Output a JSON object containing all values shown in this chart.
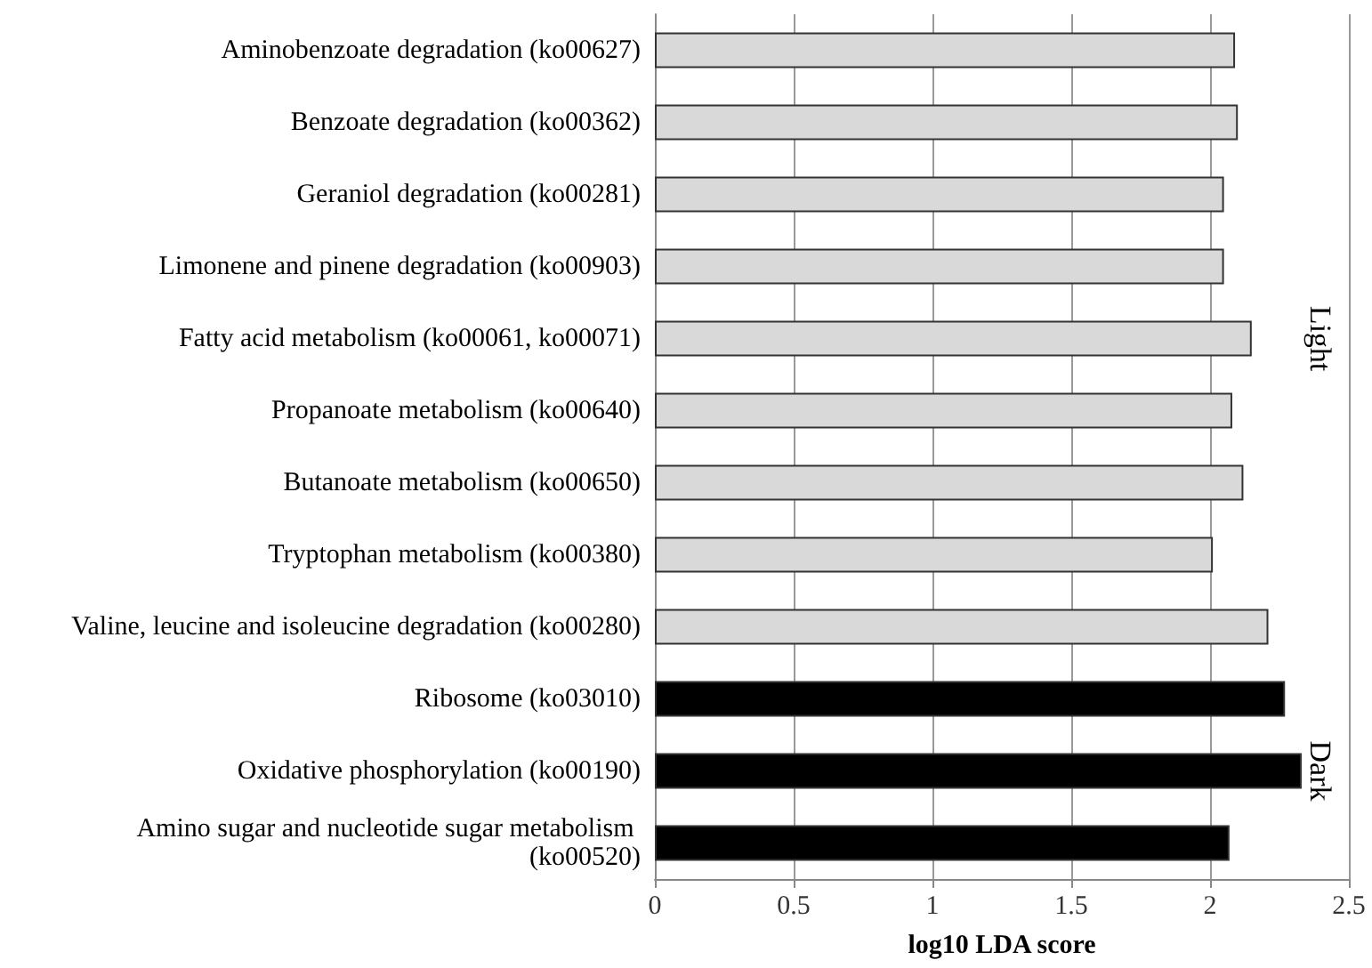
{
  "chart_data": {
    "type": "bar",
    "orientation": "horizontal",
    "xlabel": "log10 LDA score",
    "categories": [
      "Aminobenzoate degradation (ko00627)",
      "Benzoate degradation (ko00362)",
      "Geraniol degradation (ko00281)",
      "Limonene and pinene degradation (ko00903)",
      "Fatty acid metabolism (ko00061, ko00071)",
      "Propanoate metabolism (ko00640)",
      "Butanoate metabolism (ko00650)",
      "Tryptophan metabolism (ko00380)",
      "Valine, leucine and isoleucine degradation (ko00280)",
      "Ribosome (ko03010)",
      "Oxidative phosphorylation (ko00190)",
      "Amino sugar and nucleotide sugar metabolism (ko00520)"
    ],
    "series": [
      {
        "name": "Light",
        "color": "#d9d9d9",
        "values": [
          2.09,
          2.1,
          2.05,
          2.05,
          2.15,
          2.08,
          2.12,
          2.01,
          2.21,
          null,
          null,
          null
        ]
      },
      {
        "name": "Dark",
        "color": "#000000",
        "values": [
          null,
          null,
          null,
          null,
          null,
          null,
          null,
          null,
          null,
          2.27,
          2.33,
          2.07
        ]
      }
    ],
    "xlim": [
      0,
      2.5
    ],
    "xticks": [
      0,
      0.5,
      1,
      1.5,
      2,
      2.5
    ],
    "grid": "x",
    "legend": false
  }
}
